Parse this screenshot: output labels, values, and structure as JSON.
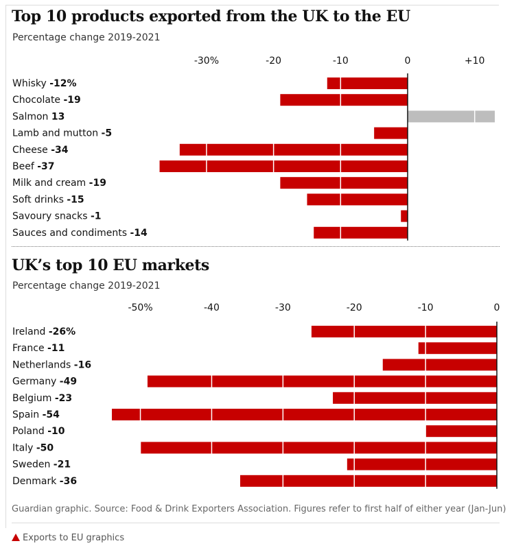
{
  "footer": {
    "source": "Guardian graphic. Source: Food & Drink Exporters Association. Figures refer to first half of either year (Jan-Jun)",
    "link": "Exports to EU graphics"
  },
  "colors": {
    "negative": "#c70000",
    "positive": "#bdbdbd",
    "gridline": "#ffffff",
    "zero_axis": "#121212"
  },
  "chart_data": [
    {
      "type": "bar",
      "orientation": "horizontal",
      "title": "Top 10 products exported from the UK to the EU",
      "subtitle": "Percentage change 2019-2021",
      "unit": "%",
      "categories": [
        "Whisky",
        "Chocolate",
        "Salmon",
        "Lamb and mutton",
        "Cheese",
        "Beef",
        "Milk and cream",
        "Soft drinks",
        "Savoury snacks",
        "Sauces and condiments"
      ],
      "value_labels": [
        "-12%",
        "-19",
        "13",
        "-5",
        "-34",
        "-37",
        "-19",
        "-15",
        "-1",
        "-14"
      ],
      "values": [
        -12,
        -19,
        13,
        -5,
        -34,
        -37,
        -19,
        -15,
        -1,
        -14
      ],
      "xlim": [
        -39,
        13
      ],
      "ticks": [
        -30,
        -20,
        -10,
        0,
        10
      ],
      "tick_labels": [
        "-30%",
        "-20",
        "-10",
        "0",
        "+10"
      ],
      "grid": true
    },
    {
      "type": "bar",
      "orientation": "horizontal",
      "title": "UK’s top 10 EU markets",
      "subtitle": "Percentage change 2019-2021",
      "unit": "%",
      "categories": [
        "Ireland",
        "France",
        "Netherlands",
        "Germany",
        "Belgium",
        "Spain",
        "Poland",
        "Italy",
        "Sweden",
        "Denmark"
      ],
      "value_labels": [
        "-26%",
        "-11",
        "-16",
        "-49",
        "-23",
        "-54",
        "-10",
        "-50",
        "-21",
        "-36"
      ],
      "values": [
        -26,
        -11,
        -16,
        -49,
        -23,
        -54,
        -10,
        -50,
        -21,
        -36
      ],
      "xlim": [
        -54,
        0
      ],
      "ticks": [
        -50,
        -40,
        -30,
        -20,
        -10,
        0
      ],
      "tick_labels": [
        "-50%",
        "-40",
        "-30",
        "-20",
        "-10",
        "0"
      ],
      "grid": true
    }
  ]
}
